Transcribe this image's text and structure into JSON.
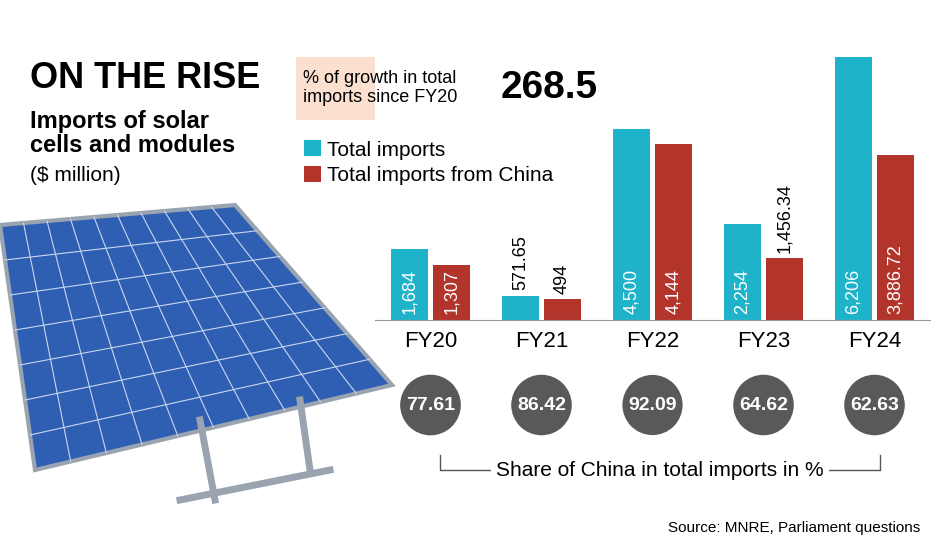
{
  "chart_data": {
    "type": "bar",
    "title": "ON THE RISE",
    "subtitle": "Imports of solar\ncells and modules",
    "unit": "($ million)",
    "categories": [
      "FY20",
      "FY21",
      "FY22",
      "FY23",
      "FY24"
    ],
    "series": [
      {
        "name": "Total imports",
        "color": "#1fb3c9",
        "values": [
          1684,
          571.65,
          4500,
          2254,
          6206
        ],
        "value_labels": [
          "1,684",
          "571.65",
          "4,500",
          "2,254",
          "6,206"
        ]
      },
      {
        "name": "Total imports from China",
        "color": "#b3342b",
        "values": [
          1307,
          494,
          4144,
          1456.34,
          3886.72
        ],
        "value_labels": [
          "1,307",
          "494",
          "4,144",
          "1,456.34",
          "3,886.72"
        ]
      }
    ],
    "highlight": {
      "text": "% of growth in total\nimports since FY20",
      "value": 268.5
    },
    "share_of_china": {
      "label": "Share of China in total imports in %",
      "values": [
        77.61,
        86.42,
        92.09,
        64.62,
        62.63
      ]
    },
    "source": "Source: MNRE, Parliament questions",
    "legend": "upper left",
    "data_labels": true,
    "tick_labels": "x",
    "grid": false
  }
}
